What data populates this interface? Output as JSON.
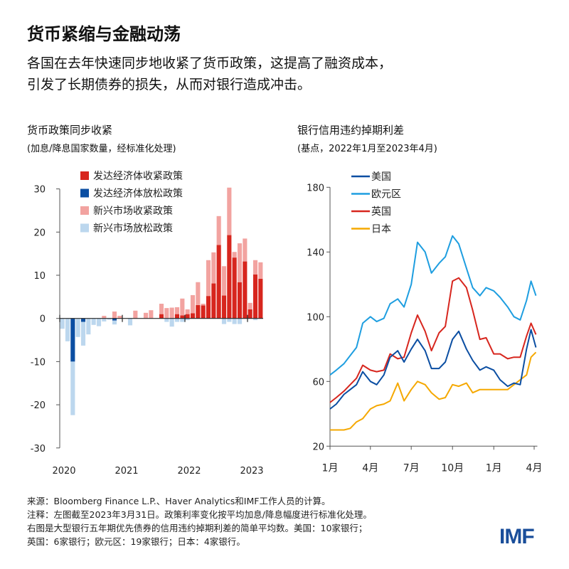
{
  "header": {
    "title": "货币紧缩与金融动荡",
    "subtitle_lines": [
      "各国在去年快速同步地收紧了货币政策，这提高了融资成本，",
      "引发了长期债券的损失，从而对银行造成冲击。"
    ]
  },
  "footer": {
    "lines": [
      "来源：Bloomberg Finance L.P.、Haver Analytics和IMF工作人员的计算。",
      "注释：左图截至2023年3月31日。政策利率变化按平均加息/降息幅度进行标准化处理。",
      "右图是大型银行五年期优先债券的信用违约掉期利差的简单平均数。美国：10家银行；",
      "英国：6家银行；欧元区：19家银行；日本：4家银行。"
    ],
    "logo_text": "IMF"
  },
  "chart_data": [
    {
      "type": "bar",
      "stacked": true,
      "title": "货币政策同步收紧",
      "subtitle": "(加息/降息国家数量，经标准化处理)",
      "ylim": [
        -30,
        30
      ],
      "yticks": [
        30,
        20,
        10,
        0,
        -10,
        -20,
        -30
      ],
      "year_labels": [
        "2020",
        "2021",
        "2022",
        "2023"
      ],
      "legend_position": "top-left",
      "categories": [
        "2020-01",
        "2020-02",
        "2020-03",
        "2020-04",
        "2020-05",
        "2020-06",
        "2020-07",
        "2020-08",
        "2020-09",
        "2020-10",
        "2020-11",
        "2020-12",
        "2021-01",
        "2021-02",
        "2021-03",
        "2021-04",
        "2021-05",
        "2021-06",
        "2021-07",
        "2021-08",
        "2021-09",
        "2021-10",
        "2021-11",
        "2021-12",
        "2022-01",
        "2022-02",
        "2022-03",
        "2022-04",
        "2022-05",
        "2022-06",
        "2022-07",
        "2022-08",
        "2022-09",
        "2022-10",
        "2022-11",
        "2022-12",
        "2023-01",
        "2023-02",
        "2023-03"
      ],
      "series": [
        {
          "name": "发达经济体收紧政策",
          "color": "#d7261e",
          "values": [
            0,
            0,
            0,
            0,
            0,
            0,
            0,
            0,
            0,
            0,
            0,
            0,
            0,
            0,
            0,
            0,
            0,
            0,
            0,
            1.0,
            0,
            0,
            1.0,
            0.7,
            1.0,
            1.2,
            3.1,
            3.0,
            5.2,
            8.1,
            17.0,
            5.3,
            19.3,
            14.1,
            8.4,
            13.2,
            2.1,
            10.2,
            9.2
          ]
        },
        {
          "name": "发达经济体放松政策",
          "color": "#0b4ea2",
          "values": [
            0,
            0,
            -10,
            0,
            -0.8,
            0,
            0,
            0,
            0,
            0,
            -0.5,
            0,
            0,
            0,
            0,
            0,
            0,
            0,
            0,
            0,
            0,
            0,
            0,
            0,
            0,
            0,
            0,
            0,
            0,
            0,
            0,
            0,
            0,
            0,
            0,
            0,
            0,
            0,
            0
          ]
        },
        {
          "name": "新兴市场收紧政策",
          "color": "#f2a3a0",
          "values": [
            0,
            0,
            0,
            0,
            0,
            0,
            0,
            0,
            0.6,
            0,
            1.6,
            0.6,
            0,
            0,
            1.8,
            0,
            1.3,
            1.9,
            0,
            2.4,
            2.4,
            2.5,
            1.6,
            3.9,
            1.1,
            4.2,
            5.3,
            0.4,
            8.3,
            7.2,
            6.7,
            6.8,
            11.0,
            1.3,
            9.0,
            5.3,
            1.5,
            3.3,
            3.8
          ]
        },
        {
          "name": "新兴市场放松政策",
          "color": "#bcd7ee",
          "values": [
            -2.4,
            -5.3,
            -12.4,
            -4.3,
            -5.5,
            -3.7,
            -1.5,
            -1.8,
            -0.7,
            -0.3,
            -0.9,
            0,
            0,
            -1.6,
            0,
            0,
            0,
            0,
            0,
            0,
            -0.8,
            -1.9,
            -0.8,
            -0.8,
            -0.4,
            0,
            0,
            0,
            0,
            0,
            0,
            -1.3,
            -0.8,
            -1.3,
            -1.3,
            0,
            0,
            -0.4,
            0
          ]
        }
      ]
    },
    {
      "type": "line",
      "title": "银行信用违约掉期利差",
      "subtitle": "(基点，2022年1月至2023年4月)",
      "ylim": [
        20,
        180
      ],
      "yticks": [
        180,
        140,
        100,
        60,
        20
      ],
      "xticks": [
        {
          "date": "2022-01-01",
          "label": "1月"
        },
        {
          "date": "2022-04-01",
          "label": "4月"
        },
        {
          "date": "2022-07-01",
          "label": "7月"
        },
        {
          "date": "2022-10-01",
          "label": "10月"
        },
        {
          "date": "2023-01-01",
          "label": "1月"
        },
        {
          "date": "2023-04-01",
          "label": "4月"
        }
      ],
      "legend_position": "top-left",
      "x": [
        "2022-01-01",
        "2022-01-15",
        "2022-02-01",
        "2022-02-15",
        "2022-03-01",
        "2022-03-15",
        "2022-04-01",
        "2022-04-15",
        "2022-05-01",
        "2022-05-15",
        "2022-06-01",
        "2022-06-15",
        "2022-07-01",
        "2022-07-15",
        "2022-08-01",
        "2022-08-15",
        "2022-09-01",
        "2022-09-15",
        "2022-10-01",
        "2022-10-15",
        "2022-11-01",
        "2022-11-15",
        "2022-12-01",
        "2022-12-15",
        "2023-01-01",
        "2023-01-15",
        "2023-02-01",
        "2023-02-15",
        "2023-03-01",
        "2023-03-15",
        "2023-03-25",
        "2023-04-05"
      ],
      "series": [
        {
          "name": "美国",
          "color": "#0b4ea2",
          "values": [
            43,
            46,
            52,
            55,
            58,
            66,
            60,
            58,
            64,
            75,
            79,
            72,
            80,
            86,
            79,
            68,
            68,
            72,
            86,
            91,
            80,
            73,
            67,
            69,
            67,
            61,
            57,
            59,
            58,
            80,
            92,
            81
          ]
        },
        {
          "name": "欧元区",
          "color": "#1e9ee0",
          "values": [
            64,
            67,
            71,
            76,
            81,
            96,
            100,
            97,
            99,
            108,
            111,
            106,
            120,
            146,
            140,
            127,
            133,
            137,
            150,
            145,
            130,
            118,
            113,
            118,
            116,
            112,
            106,
            100,
            98,
            110,
            122,
            113
          ]
        },
        {
          "name": "英国",
          "color": "#d7261e",
          "values": [
            47,
            50,
            54,
            58,
            62,
            70,
            67,
            66,
            67,
            77,
            74,
            75,
            90,
            101,
            91,
            79,
            90,
            94,
            122,
            124,
            118,
            104,
            86,
            87,
            77,
            77,
            74,
            75,
            75,
            88,
            96,
            89
          ]
        },
        {
          "name": "日本",
          "color": "#f5a800",
          "values": [
            30,
            30,
            30,
            31,
            35,
            37,
            43,
            45,
            46,
            48,
            59,
            48,
            55,
            60,
            58,
            53,
            49,
            50,
            58,
            57,
            59,
            53,
            55,
            55,
            55,
            55,
            55,
            58,
            61,
            64,
            75,
            78
          ]
        }
      ]
    }
  ]
}
